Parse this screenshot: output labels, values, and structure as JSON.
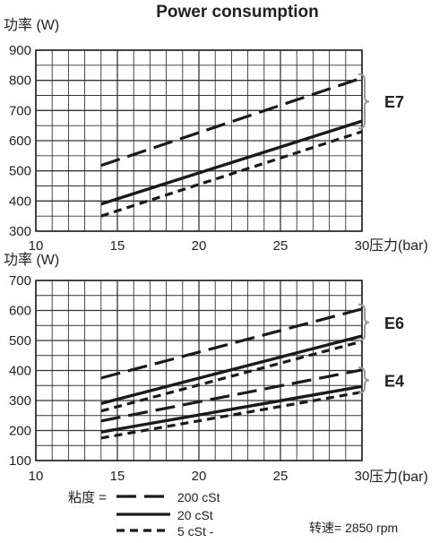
{
  "title": "Power consumption",
  "chart_data": [
    {
      "type": "line",
      "ylabel": "功率 (W)",
      "xlabel": "压力(bar)",
      "xlim": [
        10,
        30
      ],
      "ylim": [
        300,
        900
      ],
      "x_ticks": [
        10,
        15,
        20,
        25,
        30
      ],
      "y_ticks": [
        300,
        400,
        500,
        600,
        700,
        800,
        900
      ],
      "grid": true,
      "groups": [
        {
          "label": "E7",
          "range": [
            640,
            820
          ]
        }
      ],
      "series": [
        {
          "name": "200 cSt",
          "style": "dash",
          "x": [
            14,
            30
          ],
          "y": [
            518,
            808
          ]
        },
        {
          "name": "20 cSt",
          "style": "solid",
          "x": [
            14,
            30
          ],
          "y": [
            390,
            665
          ]
        },
        {
          "name": "5 cSt",
          "style": "dot",
          "x": [
            14,
            30
          ],
          "y": [
            350,
            630
          ]
        }
      ]
    },
    {
      "type": "line",
      "ylabel": "功率 (W)",
      "xlabel": "压力(bar)",
      "xlim": [
        10,
        30
      ],
      "ylim": [
        100,
        700
      ],
      "x_ticks": [
        10,
        15,
        20,
        25,
        30
      ],
      "y_ticks": [
        100,
        200,
        300,
        400,
        500,
        600,
        700
      ],
      "grid": true,
      "groups": [
        {
          "label": "E6",
          "range": [
            500,
            620
          ]
        },
        {
          "label": "E4",
          "range": [
            325,
            410
          ]
        }
      ],
      "series": [
        {
          "name": "200 cSt",
          "style": "dash",
          "x": [
            14,
            30
          ],
          "y": [
            375,
            605
          ]
        },
        {
          "name": "20 cSt",
          "style": "solid",
          "x": [
            14,
            30
          ],
          "y": [
            290,
            515
          ]
        },
        {
          "name": "5 cSt",
          "style": "dot",
          "x": [
            14,
            30
          ],
          "y": [
            265,
            497
          ]
        },
        {
          "name": "200 cSt",
          "style": "dash",
          "x": [
            14,
            30
          ],
          "y": [
            232,
            402
          ]
        },
        {
          "name": "20 cSt",
          "style": "solid",
          "x": [
            14,
            30
          ],
          "y": [
            195,
            347
          ]
        },
        {
          "name": "5 cSt",
          "style": "dot",
          "x": [
            14,
            30
          ],
          "y": [
            175,
            328
          ]
        }
      ]
    }
  ],
  "legend": {
    "heading": "粘度 =",
    "items": [
      {
        "label": "200 cSt",
        "style": "dash"
      },
      {
        "label": "20 cSt",
        "style": "solid"
      },
      {
        "label": "5 cSt  -",
        "style": "dot"
      }
    ]
  },
  "speed_label": "转速= 2850 rpm"
}
